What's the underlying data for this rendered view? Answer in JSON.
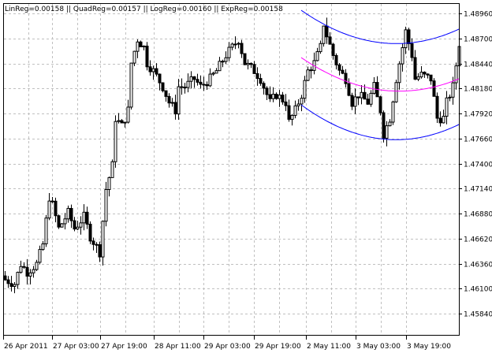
{
  "chart_data": {
    "type": "candlestick",
    "title": "",
    "indicator_label": "LinReg=0.00158 || QuadReg=0.00157 || LogReg=0.00160 || ExpReg=0.00158",
    "timeframe": "H1",
    "grid": true,
    "y_ticks": [
      "1.48960",
      "1.48700",
      "1.48440",
      "1.48180",
      "1.47920",
      "1.47660",
      "1.47400",
      "1.47140",
      "1.46880",
      "1.46620",
      "1.46360",
      "1.46100",
      "1.45840"
    ],
    "x_ticks": [
      "26 Apr 2011",
      "27 Apr 03:00",
      "27 Apr 19:00",
      "28 Apr 11:00",
      "29 Apr 03:00",
      "29 Apr 19:00",
      "2 May 11:00",
      "3 May 03:00",
      "3 May 19:00"
    ],
    "ylim": [
      1.4555,
      1.4918
    ],
    "bars": 145,
    "close_path": [
      [
        0,
        1.46192
      ],
      [
        3,
        1.46151
      ],
      [
        5,
        1.46356
      ],
      [
        7,
        1.46274
      ],
      [
        10,
        1.46356
      ],
      [
        12,
        1.4656
      ],
      [
        14,
        1.47052
      ],
      [
        15,
        1.4697
      ],
      [
        17,
        1.46724
      ],
      [
        20,
        1.46888
      ],
      [
        22,
        1.46724
      ],
      [
        25,
        1.46847
      ],
      [
        27,
        1.46642
      ],
      [
        30,
        1.46478
      ],
      [
        31,
        1.46806
      ],
      [
        32,
        1.47134
      ],
      [
        34,
        1.47379
      ],
      [
        35,
        1.47871
      ],
      [
        37,
        1.47789
      ],
      [
        39,
        1.47953
      ],
      [
        40,
        1.48444
      ],
      [
        42,
        1.4869
      ],
      [
        44,
        1.48608
      ],
      [
        45,
        1.48444
      ],
      [
        47,
        1.48362
      ],
      [
        50,
        1.48198
      ],
      [
        52,
        1.48035
      ],
      [
        54,
        1.47953
      ],
      [
        55,
        1.48198
      ],
      [
        57,
        1.48198
      ],
      [
        60,
        1.4828
      ],
      [
        62,
        1.48198
      ],
      [
        65,
        1.4828
      ],
      [
        67,
        1.48362
      ],
      [
        70,
        1.48526
      ],
      [
        72,
        1.48608
      ],
      [
        74,
        1.4869
      ],
      [
        76,
        1.48444
      ],
      [
        79,
        1.48362
      ],
      [
        81,
        1.4828
      ],
      [
        84,
        1.48035
      ],
      [
        86,
        1.48116
      ],
      [
        89,
        1.48035
      ],
      [
        90,
        1.4783
      ],
      [
        92,
        1.47953
      ],
      [
        94,
        1.48116
      ],
      [
        96,
        1.48362
      ],
      [
        98,
        1.48444
      ],
      [
        100,
        1.48608
      ],
      [
        101,
        1.48854
      ],
      [
        102,
        1.48731
      ],
      [
        104,
        1.48526
      ],
      [
        106,
        1.48362
      ],
      [
        108,
        1.4828
      ],
      [
        110,
        1.48035
      ],
      [
        112,
        1.48116
      ],
      [
        115,
        1.48035
      ],
      [
        117,
        1.48198
      ],
      [
        119,
        1.47953
      ],
      [
        120,
        1.47707
      ],
      [
        122,
        1.47871
      ],
      [
        124,
        1.4828
      ],
      [
        126,
        1.48608
      ],
      [
        127,
        1.48772
      ],
      [
        129,
        1.48526
      ],
      [
        130,
        1.4828
      ],
      [
        132,
        1.48321
      ],
      [
        135,
        1.4828
      ],
      [
        137,
        1.47871
      ],
      [
        139,
        1.47871
      ],
      [
        140,
        1.48035
      ],
      [
        142,
        1.48198
      ],
      [
        144,
        1.48649
      ]
    ],
    "regression_channel": {
      "start_bar": 94,
      "end_bar": 144,
      "upper": [
        1.48993,
        1.48649,
        1.48796
      ],
      "middle": [
        1.48501,
        1.48157,
        1.4828
      ],
      "lower": [
        1.4801,
        1.4765,
        1.47805
      ]
    },
    "colors": {
      "background": "#ffffff",
      "candle": "#000000",
      "bull_fill": "#ffffff",
      "bear_fill": "#000000",
      "grid": "#c0c0c0",
      "channel_outer": "#0000ff",
      "channel_middle": "#ff00ff"
    }
  }
}
